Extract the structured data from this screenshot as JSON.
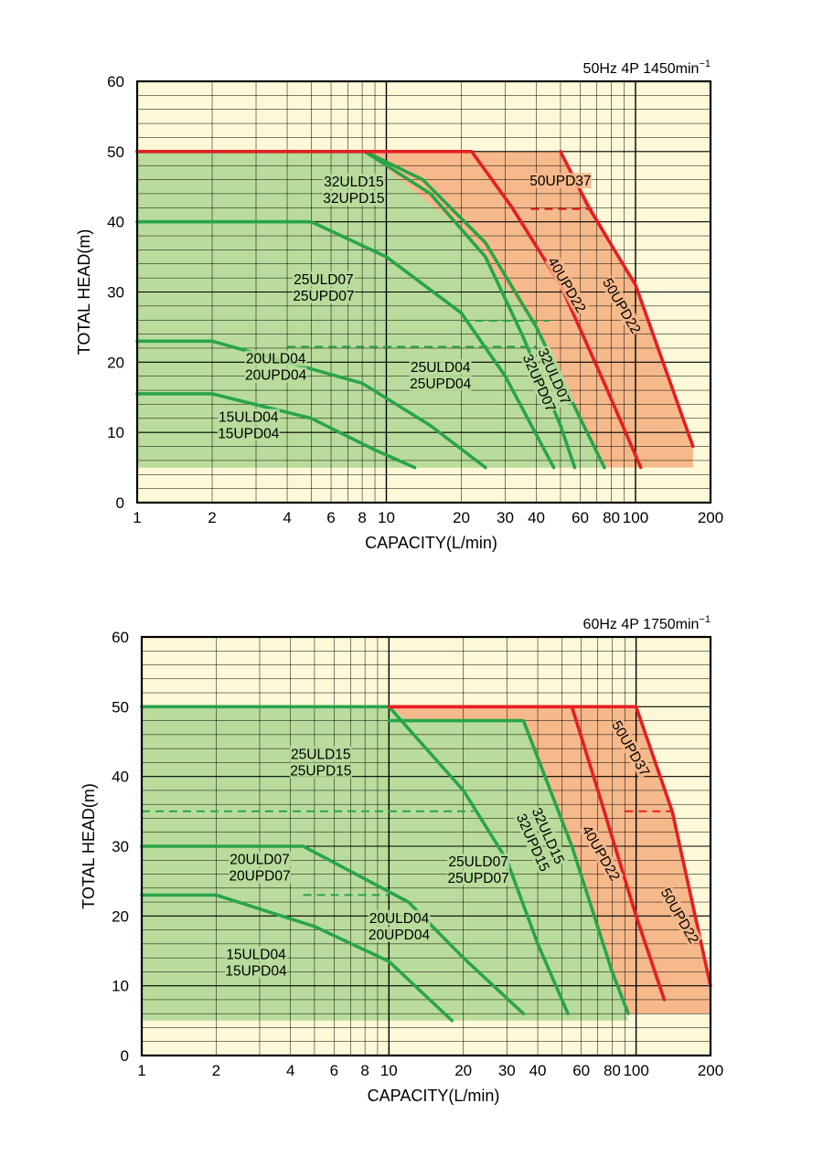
{
  "colors": {
    "plot_bg": "#fdf9d8",
    "green_fill": "#b9dc9c",
    "orange_fill": "#f6b98b",
    "green": "#2aa44a",
    "red": "#e51f23",
    "grid": "#000000"
  },
  "chart_data": [
    {
      "type": "line",
      "condition": "50Hz 4P 1450min",
      "condition_sup": "−1",
      "xlabel": "CAPACITY(L/min)",
      "ylabel": "TOTAL HEAD(m)",
      "x_scale": "log",
      "xlim": [
        1,
        200
      ],
      "ylim": [
        0,
        60
      ],
      "x_ticks": [
        1,
        2,
        4,
        6,
        8,
        10,
        20,
        30,
        40,
        60,
        80,
        100,
        200
      ],
      "x_tick_labels": [
        "1",
        "2",
        "4",
        "6",
        "8",
        "10",
        "20",
        "30",
        "40",
        "60",
        "80",
        "100",
        "200"
      ],
      "y_ticks": [
        0,
        10,
        20,
        30,
        40,
        50,
        60
      ],
      "y_tick_labels": [
        "0",
        "10",
        "20",
        "30",
        "40",
        "50",
        "60"
      ],
      "regions": [
        {
          "color": "orange",
          "points": [
            [
              1,
              50
            ],
            [
              50,
              50
            ],
            [
              100,
              31
            ],
            [
              170,
              8
            ],
            [
              170,
              5
            ],
            [
              1,
              5
            ]
          ]
        },
        {
          "color": "green",
          "points": [
            [
              1,
              50
            ],
            [
              8.2,
              50
            ],
            [
              20,
              39
            ],
            [
              40,
              25
            ],
            [
              75,
              5
            ],
            [
              1,
              5
            ]
          ]
        }
      ],
      "series": [
        {
          "names": [
            "15ULD04",
            "15UPD04"
          ],
          "color": "green",
          "points": [
            [
              1,
              15.5
            ],
            [
              2,
              15.5
            ],
            [
              5,
              12
            ],
            [
              9,
              7.5
            ],
            [
              13,
              5
            ]
          ],
          "label_at": [
            2.8,
            11
          ]
        },
        {
          "names": [
            "20ULD04",
            "20UPD04"
          ],
          "color": "green",
          "points": [
            [
              1,
              23
            ],
            [
              2,
              23
            ],
            [
              4,
              20
            ],
            [
              8,
              17
            ],
            [
              15,
              11
            ],
            [
              25,
              5
            ]
          ],
          "label_at": [
            3.6,
            19.3
          ]
        },
        {
          "names": [
            "25ULD07",
            "25UPD07"
          ],
          "color": "green",
          "points": [
            [
              1,
              40
            ],
            [
              5,
              40
            ],
            [
              10,
              35
            ],
            [
              20,
              27
            ],
            [
              30,
              18
            ],
            [
              47,
              5
            ]
          ],
          "label_at": [
            5.6,
            30.6
          ]
        },
        {
          "names": [
            "25ULD04",
            "25UPD04"
          ],
          "color": "green",
          "points": [
            [
              1,
              50
            ],
            [
              8.2,
              50
            ],
            [
              15,
              44
            ],
            [
              25,
              35
            ],
            [
              35,
              24
            ],
            [
              50,
              11
            ],
            [
              57,
              5
            ]
          ],
          "label_at": [
            16.5,
            18.1
          ]
        },
        {
          "names": [
            "32ULD15",
            "32UPD15"
          ],
          "color": "green",
          "points": [
            [
              1,
              50
            ],
            [
              8.2,
              50
            ],
            [
              14,
              46
            ],
            [
              25,
              37
            ],
            [
              40,
              25
            ],
            [
              60,
              12
            ],
            [
              75,
              5
            ]
          ],
          "label_at": [
            7.4,
            44.5
          ]
        },
        {
          "names": [
            "32ULD07",
            "32UPD07"
          ],
          "color": "green",
          "points": [],
          "label_at": [
            44,
            17.5
          ],
          "label_rotate": 66
        },
        {
          "names": [
            "40UPD22"
          ],
          "color": "red",
          "points": [
            [
              1,
              50
            ],
            [
              22,
              50
            ],
            [
              32,
              42
            ],
            [
              50,
              31
            ],
            [
              75,
              17
            ],
            [
              105,
              5
            ]
          ],
          "label_at": [
            53,
            31
          ],
          "label_rotate": 60
        },
        {
          "names": [
            "50UPD22"
          ],
          "color": "red",
          "points": [
            [
              50,
              50
            ],
            [
              65,
              42
            ],
            [
              100,
              31
            ],
            [
              170,
              8
            ]
          ],
          "label_at": [
            88,
            28
          ],
          "label_rotate": 60
        },
        {
          "names": [
            "50UPD37"
          ],
          "color": "red",
          "points": [],
          "label_at": [
            50,
            45.8
          ]
        }
      ],
      "dashed": [
        {
          "color": "green",
          "points": [
            [
              4,
              22.2
            ],
            [
              40,
              22.2
            ]
          ]
        },
        {
          "color": "green",
          "points": [
            [
              20,
              25.9
            ],
            [
              45,
              25.9
            ]
          ]
        },
        {
          "color": "red",
          "points": [
            [
              38,
              41.8
            ],
            [
              67,
              41.8
            ]
          ]
        }
      ]
    },
    {
      "type": "line",
      "condition": "60Hz 4P 1750min",
      "condition_sup": "−1",
      "xlabel": "CAPACITY(L/min)",
      "ylabel": "TOTAL HEAD(m)",
      "x_scale": "log",
      "xlim": [
        1,
        200
      ],
      "ylim": [
        0,
        60
      ],
      "x_ticks": [
        1,
        2,
        4,
        6,
        8,
        10,
        20,
        30,
        40,
        60,
        80,
        100,
        200
      ],
      "x_tick_labels": [
        "1",
        "2",
        "4",
        "6",
        "8",
        "10",
        "20",
        "30",
        "40",
        "60",
        "80",
        "100",
        "200"
      ],
      "y_ticks": [
        0,
        10,
        20,
        30,
        40,
        50,
        60
      ],
      "y_tick_labels": [
        "0",
        "10",
        "20",
        "30",
        "40",
        "50",
        "60"
      ],
      "regions": [
        {
          "color": "orange",
          "points": [
            [
              1,
              50
            ],
            [
              100,
              50
            ],
            [
              140,
              35
            ],
            [
              200,
              10
            ],
            [
              200,
              6
            ],
            [
              1,
              6
            ]
          ]
        },
        {
          "color": "green",
          "points": [
            [
              1,
              50
            ],
            [
              10,
              50
            ],
            [
              12,
              48
            ],
            [
              35,
              48
            ],
            [
              55,
              30
            ],
            [
              80,
              12
            ],
            [
              93,
              5
            ],
            [
              1,
              5
            ]
          ]
        }
      ],
      "series": [
        {
          "names": [
            "15ULD04",
            "15UPD04"
          ],
          "color": "green",
          "points": [
            [
              1,
              23
            ],
            [
              2,
              23
            ],
            [
              5,
              18.5
            ],
            [
              10,
              13.5
            ],
            [
              18,
              5
            ]
          ],
          "label_at": [
            2.9,
            13.3
          ]
        },
        {
          "names": [
            "20ULD07",
            "20UPD07"
          ],
          "color": "green",
          "points": [
            [
              1,
              30
            ],
            [
              4.5,
              30
            ],
            [
              12,
              22
            ],
            [
              20,
              14
            ],
            [
              35,
              6
            ]
          ],
          "label_at": [
            3.0,
            26.9
          ]
        },
        {
          "names": [
            "20ULD04",
            "20UPD04"
          ],
          "color": "green",
          "points": [],
          "label_at": [
            11,
            18.5
          ]
        },
        {
          "names": [
            "25ULD15",
            "25UPD15"
          ],
          "color": "green",
          "points": [
            [
              1,
              50
            ],
            [
              10,
              50
            ],
            [
              20,
              38
            ],
            [
              30,
              28
            ],
            [
              40,
              16
            ],
            [
              53,
              6
            ]
          ],
          "label_at": [
            5.3,
            42
          ]
        },
        {
          "names": [
            "25ULD07",
            "25UPD07"
          ],
          "color": "green",
          "points": [],
          "label_at": [
            23,
            26.6
          ]
        },
        {
          "names": [
            "32ULD15",
            "32UPD15"
          ],
          "color": "green",
          "points": [
            [
              10,
              48
            ],
            [
              35,
              48
            ],
            [
              55,
              30
            ],
            [
              80,
              12
            ],
            [
              93,
              6
            ]
          ],
          "label_at": [
            41,
            31
          ],
          "label_rotate": 66
        },
        {
          "names": [
            "40UPD22"
          ],
          "color": "red",
          "points": [
            [
              10,
              50
            ],
            [
              55,
              50
            ],
            [
              70,
              38
            ],
            [
              100,
              20
            ],
            [
              130,
              8
            ]
          ],
          "label_at": [
            72,
            29
          ],
          "label_rotate": 60
        },
        {
          "names": [
            "50UPD37"
          ],
          "color": "red",
          "points": [
            [
              10,
              50
            ],
            [
              100,
              50
            ],
            [
              140,
              35
            ],
            [
              200,
              10
            ]
          ],
          "label_at": [
            95,
            44
          ],
          "label_rotate": 60
        },
        {
          "names": [
            "50UPD22"
          ],
          "color": "red",
          "points": [],
          "label_at": [
            150,
            20
          ],
          "label_rotate": 60
        }
      ],
      "dashed": [
        {
          "color": "green",
          "points": [
            [
              1,
              35
            ],
            [
              22,
              35
            ]
          ]
        },
        {
          "color": "green",
          "points": [
            [
              4.5,
              23
            ],
            [
              10,
              23
            ]
          ]
        },
        {
          "color": "red",
          "points": [
            [
              90,
              35
            ],
            [
              140,
              35
            ]
          ]
        }
      ]
    }
  ]
}
